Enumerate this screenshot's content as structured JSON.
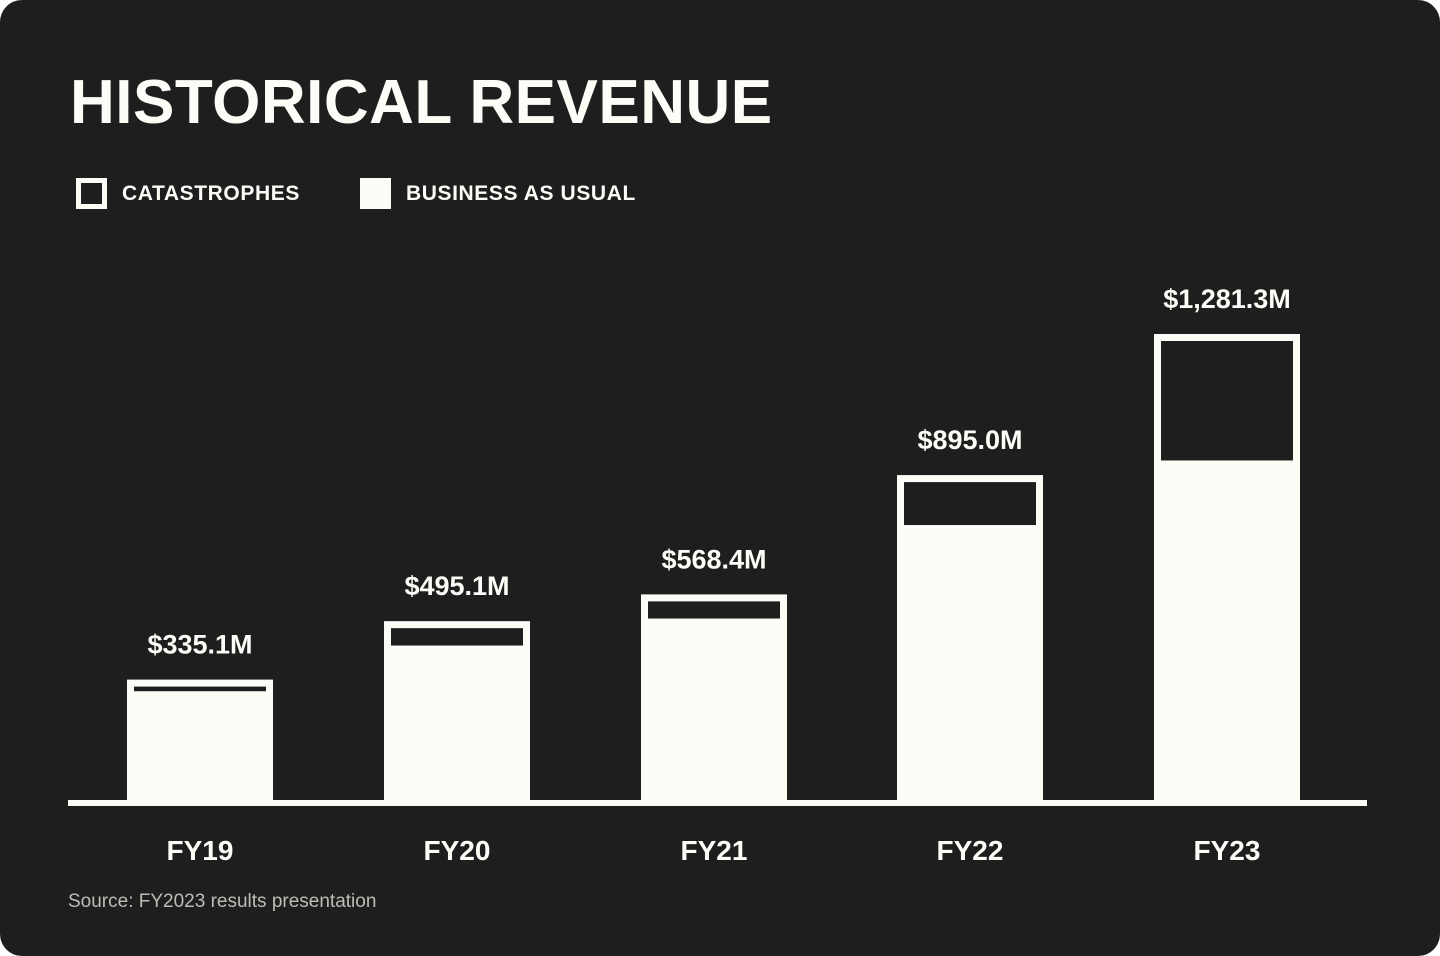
{
  "colors": {
    "background": "#1e1e1e",
    "foreground": "#fdfdf8",
    "source_text": "#bdbdb6"
  },
  "chart_data": {
    "type": "bar",
    "title": "HISTORICAL REVENUE",
    "legend": {
      "placement": "top-left",
      "entries": [
        {
          "label": "CATASTROPHES",
          "style": "outline",
          "icon": "outline-square-icon"
        },
        {
          "label": "BUSINESS AS USUAL",
          "style": "solid",
          "icon": "filled-square-icon"
        }
      ]
    },
    "categories": [
      "FY19",
      "FY20",
      "FY21",
      "FY22",
      "FY23"
    ],
    "series": [
      {
        "name": "BUSINESS AS USUAL",
        "values": [
          303,
          428,
          502,
          758,
          935
        ]
      },
      {
        "name": "CATASTROPHES",
        "values": [
          32.1,
          67.1,
          66.4,
          137.0,
          346.3
        ]
      }
    ],
    "totals": [
      335.1,
      495.1,
      568.4,
      895.0,
      1281.3
    ],
    "total_labels": [
      "$335.1M",
      "$495.1M",
      "$568.4M",
      "$895.0M",
      "$1,281.3M"
    ],
    "ylim": [
      0,
      1281.3
    ],
    "grid": false,
    "xlabel": "",
    "ylabel": ""
  },
  "source": "Source: FY2023 results presentation"
}
